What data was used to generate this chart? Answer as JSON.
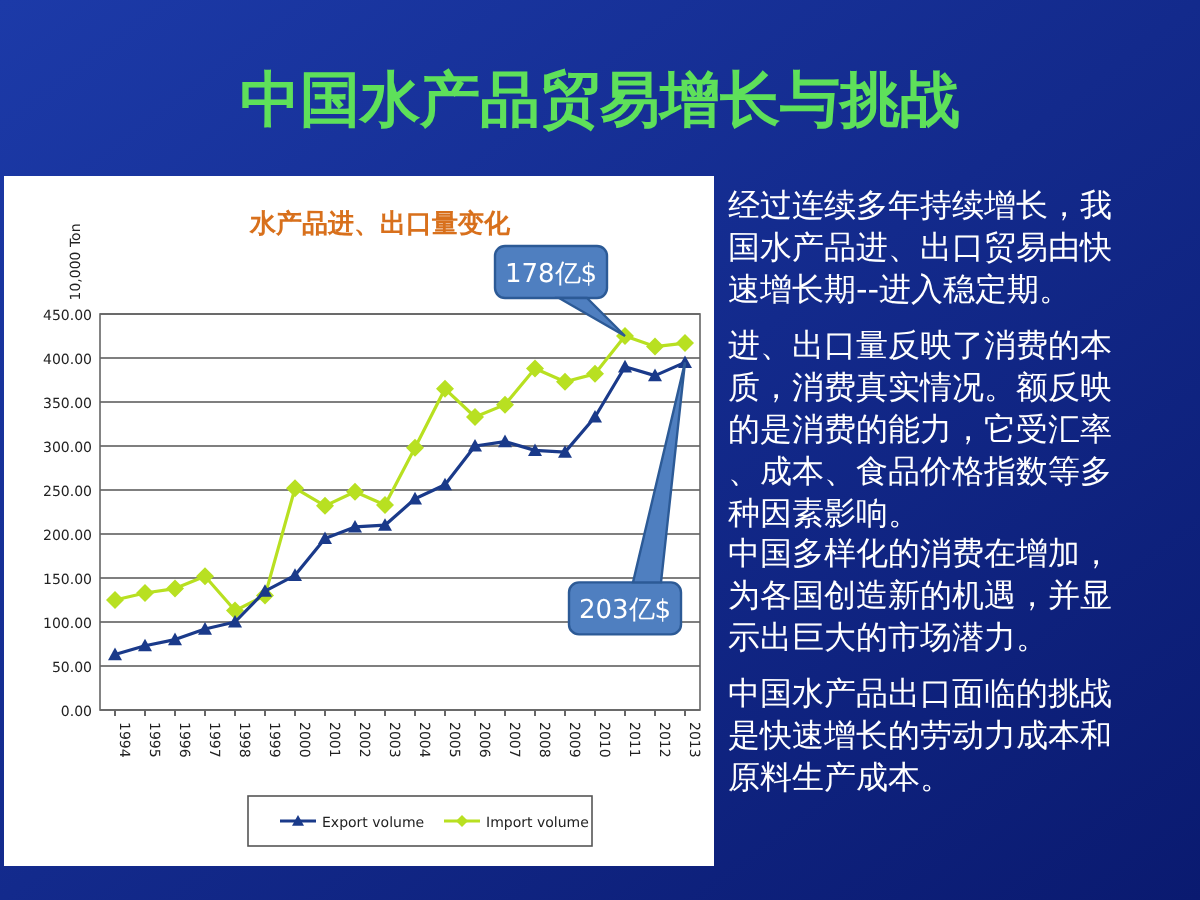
{
  "chart_data": {
    "type": "line",
    "title": "中国水产品贸易增长与挑战",
    "subtitle": "水产品进、出口量变化",
    "ylabel": "10,000 Ton",
    "categories": [
      "1994",
      "1995",
      "1996",
      "1997",
      "1998",
      "1999",
      "2000",
      "2001",
      "2002",
      "2003",
      "2004",
      "2005",
      "2006",
      "2007",
      "2008",
      "2009",
      "2010",
      "2011",
      "2012",
      "2013"
    ],
    "series": [
      {
        "name": "Export volume",
        "color": "#1a3a8a",
        "marker": "triangle",
        "values": [
          63,
          73,
          80,
          92,
          100,
          135,
          153,
          195,
          208,
          210,
          240,
          256,
          300,
          305,
          295,
          293,
          333,
          390,
          380,
          395
        ]
      },
      {
        "name": "Import volume",
        "color": "#b8e021",
        "marker": "diamond",
        "values": [
          125,
          133,
          138,
          152,
          113,
          130,
          252,
          232,
          248,
          233,
          298,
          365,
          333,
          347,
          388,
          373,
          382,
          425,
          413,
          417
        ]
      }
    ],
    "ylim": [
      0,
      450
    ],
    "yticks": [
      {
        "value": 0,
        "label": "0.00"
      },
      {
        "value": 50,
        "label": "50.00"
      },
      {
        "value": 100,
        "label": "100.00"
      },
      {
        "value": 150,
        "label": "150.00"
      },
      {
        "value": 200,
        "label": "200.00"
      },
      {
        "value": 250,
        "label": "250.00"
      },
      {
        "value": 300,
        "label": "300.00"
      },
      {
        "value": 350,
        "label": "350.00"
      },
      {
        "value": 400,
        "label": "400.00"
      },
      {
        "value": 450,
        "label": "450.00"
      }
    ],
    "grid": "y",
    "legend": "bottom",
    "line_style": "solid",
    "annotations": [
      {
        "text": "178亿$",
        "x": "2011",
        "y": 425
      },
      {
        "text": "203亿$",
        "x": "2013",
        "y": 395
      },
      "经过连续多年持续增长，我国水产品进、出口贸易由快速增长期--进入稳定期。",
      "进、出口量反映了消费的本质，消费真实情况。额反映的是消费的能力，它受汇率、成本、食品价格指数等多种因素影响。",
      "中国多样化的消费在增加，为各国创造新的机遇，并显示出巨大的市场潜力。",
      "中国水产品出口面临的挑战是快速增长的劳动力成本和原料生产成本。"
    ]
  }
}
